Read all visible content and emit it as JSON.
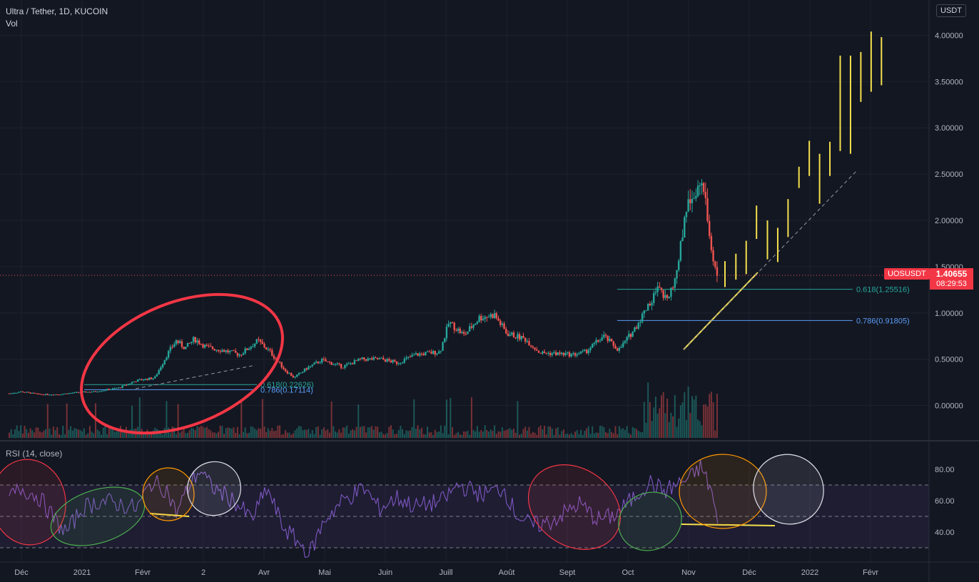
{
  "header": {
    "title": "Ultra / Tether, 1D, KUCOIN",
    "volume_label": "Vol",
    "currency": "USDT"
  },
  "last_price": {
    "symbol": "UOSUSDT",
    "price": "1.40655",
    "countdown": "08:29:53"
  },
  "price_axis": {
    "ticks": [
      "4.00000",
      "3.50000",
      "3.00000",
      "2.50000",
      "2.00000",
      "1.50000",
      "1.00000",
      "0.50000",
      "0.00000"
    ],
    "ylim": [
      -0.35,
      4.15
    ]
  },
  "rsi": {
    "label": "RSI (14, close)",
    "ticks": [
      "80.00",
      "60.00",
      "40.00"
    ],
    "band": [
      30,
      70
    ]
  },
  "time_axis": [
    "Déc",
    "2021",
    "Févr",
    "2",
    "Avr",
    "Mai",
    "Juin",
    "Juill",
    "Août",
    "Sept",
    "Oct",
    "Nov",
    "Déc",
    "2022",
    "Févr"
  ],
  "fib_levels": [
    {
      "label": "0.618(1.25516)",
      "value": 1.25516,
      "color": "#26a69a"
    },
    {
      "label": "0.786(0.91805)",
      "value": 0.91805,
      "color": "#5b9cf6"
    },
    {
      "label": "0.618(0.22626)",
      "value": 0.22626,
      "color": "#26a69a"
    },
    {
      "label": "0.786(0.17114)",
      "value": 0.17114,
      "color": "#5b9cf6"
    }
  ],
  "colors": {
    "up": "#26a69a",
    "down": "#ef5350",
    "rsi_line": "#7e57c2",
    "projection": "#f4e04d",
    "annotation_red": "#f23645"
  },
  "chart_data": {
    "type": "candlestick",
    "x_unit": "month-index (0 = Dec 2020 start)",
    "price_path": [
      [
        -0.2,
        0.13
      ],
      [
        0.0,
        0.15
      ],
      [
        0.3,
        0.12
      ],
      [
        0.6,
        0.12
      ],
      [
        0.9,
        0.14
      ],
      [
        1.2,
        0.15
      ],
      [
        1.6,
        0.19
      ],
      [
        1.9,
        0.27
      ],
      [
        2.2,
        0.3
      ],
      [
        2.4,
        0.55
      ],
      [
        2.55,
        0.7
      ],
      [
        2.7,
        0.62
      ],
      [
        2.85,
        0.72
      ],
      [
        3.05,
        0.63
      ],
      [
        3.3,
        0.6
      ],
      [
        3.6,
        0.55
      ],
      [
        3.9,
        0.7
      ],
      [
        4.1,
        0.58
      ],
      [
        4.35,
        0.38
      ],
      [
        4.5,
        0.3
      ],
      [
        4.7,
        0.4
      ],
      [
        4.95,
        0.49
      ],
      [
        5.3,
        0.42
      ],
      [
        5.6,
        0.5
      ],
      [
        5.95,
        0.5
      ],
      [
        6.2,
        0.46
      ],
      [
        6.5,
        0.55
      ],
      [
        6.9,
        0.58
      ],
      [
        7.05,
        0.9
      ],
      [
        7.3,
        0.76
      ],
      [
        7.55,
        0.95
      ],
      [
        7.8,
        0.98
      ],
      [
        8.0,
        0.78
      ],
      [
        8.3,
        0.72
      ],
      [
        8.55,
        0.57
      ],
      [
        8.85,
        0.56
      ],
      [
        9.1,
        0.55
      ],
      [
        9.3,
        0.58
      ],
      [
        9.6,
        0.75
      ],
      [
        9.85,
        0.6
      ],
      [
        10.1,
        0.82
      ],
      [
        10.35,
        1.1
      ],
      [
        10.5,
        1.26
      ],
      [
        10.6,
        1.15
      ],
      [
        10.75,
        1.3
      ],
      [
        10.85,
        1.62
      ],
      [
        10.95,
        2.15
      ],
      [
        11.05,
        2.25
      ],
      [
        11.15,
        2.38
      ],
      [
        11.25,
        2.3
      ],
      [
        11.35,
        1.8
      ],
      [
        11.47,
        1.41
      ]
    ],
    "rsi_path": [
      [
        -0.2,
        62
      ],
      [
        0.0,
        68
      ],
      [
        0.3,
        62
      ],
      [
        0.6,
        45
      ],
      [
        0.75,
        40
      ],
      [
        1.0,
        55
      ],
      [
        1.3,
        60
      ],
      [
        1.6,
        58
      ],
      [
        1.9,
        55
      ],
      [
        2.15,
        72
      ],
      [
        2.4,
        67
      ],
      [
        2.55,
        52
      ],
      [
        2.8,
        72
      ],
      [
        2.95,
        80
      ],
      [
        3.1,
        70
      ],
      [
        3.5,
        60
      ],
      [
        3.8,
        48
      ],
      [
        4.05,
        68
      ],
      [
        4.3,
        44
      ],
      [
        4.6,
        32
      ],
      [
        4.75,
        26
      ],
      [
        5.0,
        48
      ],
      [
        5.3,
        60
      ],
      [
        5.65,
        68
      ],
      [
        5.9,
        55
      ],
      [
        6.2,
        62
      ],
      [
        6.5,
        56
      ],
      [
        6.95,
        60
      ],
      [
        7.2,
        70
      ],
      [
        7.6,
        64
      ],
      [
        7.95,
        68
      ],
      [
        8.15,
        52
      ],
      [
        8.4,
        44
      ],
      [
        8.7,
        46
      ],
      [
        8.95,
        52
      ],
      [
        9.2,
        58
      ],
      [
        9.5,
        48
      ],
      [
        9.75,
        50
      ],
      [
        10.05,
        60
      ],
      [
        10.35,
        72
      ],
      [
        10.6,
        66
      ],
      [
        10.8,
        70
      ],
      [
        11.05,
        75
      ],
      [
        11.2,
        82
      ],
      [
        11.38,
        66
      ],
      [
        11.48,
        45
      ]
    ],
    "projection_bars": [
      [
        11.6,
        1.28,
        1.56
      ],
      [
        11.78,
        1.36,
        1.64
      ],
      [
        11.95,
        1.42,
        1.78
      ],
      [
        12.12,
        1.8,
        2.16
      ],
      [
        12.3,
        1.58,
        2.0
      ],
      [
        12.47,
        1.55,
        1.92
      ],
      [
        12.64,
        1.82,
        2.23
      ],
      [
        12.82,
        2.35,
        2.58
      ],
      [
        12.99,
        2.48,
        2.86
      ],
      [
        13.16,
        2.18,
        2.72
      ],
      [
        13.33,
        2.48,
        2.85
      ],
      [
        13.5,
        2.75,
        3.78
      ],
      [
        13.67,
        2.72,
        3.78
      ],
      [
        13.84,
        3.28,
        3.82
      ],
      [
        14.01,
        3.39,
        4.04
      ],
      [
        14.18,
        3.46,
        3.98
      ]
    ]
  }
}
